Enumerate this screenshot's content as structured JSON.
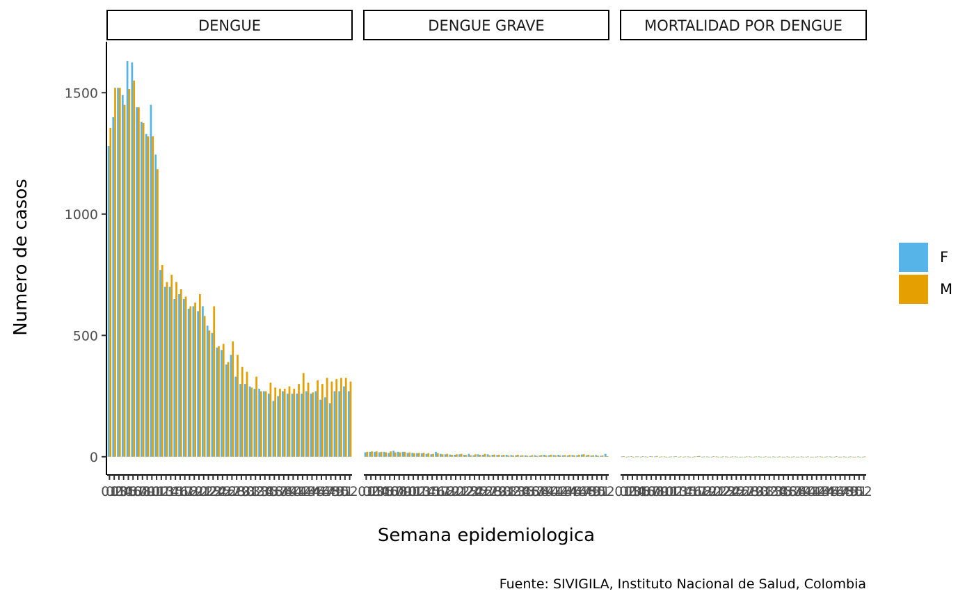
{
  "chart_data": {
    "type": "bar",
    "ylabel": "Numero de casos",
    "xlabel": "Semana epidemiologica",
    "caption": "Fuente: SIVIGILA, Instituto Nacional de Salud, Colombia",
    "ylim": [
      -75,
      1710
    ],
    "yticks": [
      0,
      500,
      1000,
      1500
    ],
    "grid": false,
    "legend_position": "right",
    "legend": [
      {
        "name": "F",
        "color": "#56B4E9"
      },
      {
        "name": "M",
        "color": "#E69F00"
      }
    ],
    "panels": [
      {
        "label": "DENGUE",
        "x_domain": [
          "01",
          "02",
          "03",
          "04",
          "05",
          "06",
          "07",
          "08",
          "09",
          "10",
          "11",
          "12",
          "13",
          "14",
          "15",
          "16",
          "17",
          "18",
          "19",
          "20",
          "21",
          "22",
          "23",
          "24",
          "25",
          "26",
          "27",
          "28",
          "29",
          "30",
          "31",
          "32",
          "33",
          "34",
          "35",
          "36",
          "37",
          "38",
          "39",
          "40",
          "41",
          "42",
          "43",
          "44",
          "45",
          "46",
          "47",
          "48",
          "49",
          "50",
          "51",
          "52"
        ],
        "series": [
          {
            "name": "F",
            "values": [
              1280,
              1400,
              1520,
              1490,
              1630,
              1625,
              1440,
              1380,
              1330,
              1450,
              1245,
              770,
              700,
              700,
              650,
              670,
              650,
              610,
              620,
              600,
              620,
              540,
              510,
              450,
              440,
              380,
              420,
              330,
              300,
              300,
              290,
              280,
              280,
              270,
              260,
              230,
              250,
              270,
              260,
              260,
              260,
              260,
              270,
              260,
              270,
              235,
              245,
              220,
              270,
              270,
              290,
              270
            ]
          },
          {
            "name": "M",
            "values": [
              1355,
              1520,
              1520,
              1450,
              1515,
              1550,
              1440,
              1375,
              1320,
              1320,
              1185,
              790,
              720,
              750,
              720,
              690,
              660,
              620,
              635,
              670,
              580,
              520,
              620,
              455,
              465,
              390,
              475,
              420,
              370,
              350,
              285,
              330,
              270,
              270,
              305,
              285,
              280,
              280,
              290,
              280,
              300,
              345,
              305,
              265,
              315,
              300,
              325,
              310,
              320,
              325,
              325,
              310
            ]
          }
        ]
      },
      {
        "label": "DENGUE GRAVE",
        "x_domain": [
          "01",
          "02",
          "03",
          "04",
          "05",
          "06",
          "07",
          "08",
          "09",
          "10",
          "11",
          "12",
          "13",
          "14",
          "15",
          "16",
          "17",
          "18",
          "19",
          "20",
          "21",
          "22",
          "23",
          "24",
          "25",
          "26",
          "27",
          "28",
          "29",
          "30",
          "31",
          "32",
          "33",
          "34",
          "35",
          "36",
          "37",
          "38",
          "39",
          "40",
          "41",
          "42",
          "43",
          "44",
          "45",
          "46",
          "47",
          "48",
          "49",
          "50",
          "51",
          "52"
        ],
        "series": [
          {
            "name": "F",
            "values": [
              18,
              20,
              20,
              18,
              20,
              16,
              25,
              20,
              20,
              16,
              16,
              15,
              14,
              12,
              10,
              20,
              12,
              10,
              9,
              8,
              10,
              8,
              12,
              6,
              10,
              8,
              10,
              8,
              7,
              6,
              8,
              7,
              6,
              5,
              6,
              4,
              6,
              5,
              8,
              6,
              7,
              8,
              6,
              5,
              7,
              6,
              9,
              6,
              5,
              7,
              4,
              12
            ]
          },
          {
            "name": "M",
            "values": [
              20,
              22,
              22,
              20,
              18,
              22,
              18,
              18,
              20,
              18,
              15,
              16,
              17,
              15,
              12,
              15,
              10,
              12,
              8,
              10,
              12,
              7,
              6,
              10,
              8,
              12,
              6,
              9,
              8,
              8,
              5,
              5,
              8,
              6,
              4,
              6,
              4,
              7,
              5,
              8,
              6,
              5,
              7,
              8,
              6,
              8,
              10,
              8,
              6,
              4,
              5,
              2
            ]
          }
        ]
      },
      {
        "label": "MORTALIDAD POR DENGUE",
        "x_domain": [
          "01",
          "02",
          "03",
          "04",
          "05",
          "06",
          "07",
          "08",
          "09",
          "10",
          "11",
          "12",
          "13",
          "14",
          "15",
          "16",
          "17",
          "18",
          "19",
          "20",
          "21",
          "22",
          "23",
          "24",
          "25",
          "26",
          "27",
          "28",
          "29",
          "30",
          "31",
          "32",
          "33",
          "34",
          "35",
          "36",
          "37",
          "38",
          "39",
          "40",
          "41",
          "42",
          "43",
          "44",
          "45",
          "46",
          "47",
          "48",
          "49",
          "50",
          "51",
          "52"
        ],
        "series": [
          {
            "name": "F",
            "values": [
              1,
              0,
              2,
              1,
              0,
              1,
              2,
              1,
              0,
              1,
              0,
              1,
              0,
              0,
              1,
              0,
              2,
              0,
              1,
              0,
              1,
              0,
              1,
              0,
              1,
              0,
              0,
              1,
              0,
              1,
              0,
              0,
              1,
              0,
              0,
              1,
              0,
              0,
              1,
              0,
              0,
              0,
              1,
              0,
              1,
              0,
              0,
              1,
              0,
              0,
              1,
              0
            ]
          },
          {
            "name": "M",
            "values": [
              2,
              1,
              0,
              1,
              2,
              0,
              1,
              3,
              1,
              0,
              1,
              2,
              1,
              1,
              0,
              1,
              3,
              1,
              0,
              2,
              0,
              1,
              0,
              1,
              0,
              0,
              1,
              0,
              1,
              0,
              1,
              0,
              0,
              1,
              0,
              0,
              1,
              0,
              0,
              1,
              0,
              1,
              0,
              1,
              0,
              2,
              0,
              0,
              1,
              0,
              0,
              1
            ]
          }
        ]
      }
    ]
  }
}
